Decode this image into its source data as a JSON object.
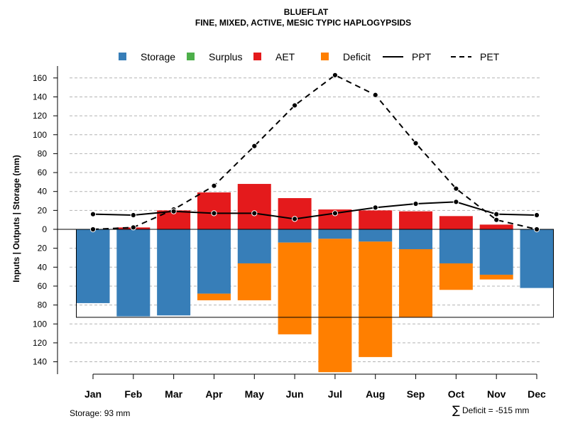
{
  "chart_data": {
    "type": "bar",
    "title": "BLUEFLAT",
    "subtitle": "FINE, MIXED, ACTIVE, MESIC TYPIC HAPLOGYPSIDS",
    "ylabel": "Inputs | Outputs | Storage    (mm)",
    "categories": [
      "Jan",
      "Feb",
      "Mar",
      "Apr",
      "May",
      "Jun",
      "Jul",
      "Aug",
      "Sep",
      "Oct",
      "Nov",
      "Dec"
    ],
    "ylim": [
      -150,
      165
    ],
    "yticks": [
      {
        "value": 160,
        "label": "160"
      },
      {
        "value": 140,
        "label": "140"
      },
      {
        "value": 120,
        "label": "120"
      },
      {
        "value": 100,
        "label": "100"
      },
      {
        "value": 80,
        "label": "80"
      },
      {
        "value": 60,
        "label": "60"
      },
      {
        "value": 40,
        "label": "40"
      },
      {
        "value": 20,
        "label": "20"
      },
      {
        "value": 0,
        "label": "0"
      },
      {
        "value": -20,
        "label": "20"
      },
      {
        "value": -40,
        "label": "40"
      },
      {
        "value": -60,
        "label": "60"
      },
      {
        "value": -80,
        "label": "80"
      },
      {
        "value": -100,
        "label": "100"
      },
      {
        "value": -120,
        "label": "120"
      },
      {
        "value": -140,
        "label": "140"
      }
    ],
    "grid": true,
    "legend": [
      {
        "name": "Storage",
        "kind": "box",
        "color": "#377eb8"
      },
      {
        "name": "Surplus",
        "kind": "box",
        "color": "#4daf4a"
      },
      {
        "name": "AET",
        "kind": "box",
        "color": "#e41a1c"
      },
      {
        "name": "Deficit",
        "kind": "box",
        "color": "#ff7f00"
      },
      {
        "name": "PPT",
        "kind": "solid-line",
        "color": "#000000"
      },
      {
        "name": "PET",
        "kind": "dashed-line",
        "color": "#000000"
      }
    ],
    "series": [
      {
        "name": "AET",
        "color": "#e41a1c",
        "values": [
          0,
          2,
          20,
          39,
          48,
          33,
          21,
          20,
          19,
          14,
          5,
          0
        ]
      },
      {
        "name": "Surplus",
        "color": "#4daf4a",
        "values": [
          0,
          0,
          0,
          0,
          0,
          0,
          0,
          0,
          0,
          0,
          0,
          0
        ]
      },
      {
        "name": "Storage",
        "color": "#377eb8",
        "values": [
          78,
          92,
          91,
          68,
          36,
          14,
          10,
          13,
          21,
          36,
          48,
          62
        ]
      },
      {
        "name": "Deficit",
        "color": "#ff7f00",
        "values": [
          0,
          0,
          0,
          7,
          39,
          97,
          141,
          122,
          72,
          28,
          5,
          0
        ]
      },
      {
        "name": "PPT",
        "color": "#000000",
        "values": [
          16,
          15,
          19,
          17,
          17,
          11,
          17,
          23,
          27,
          29,
          16,
          15
        ]
      },
      {
        "name": "PET",
        "color": "#000000",
        "values": [
          0,
          2,
          21,
          46,
          88,
          131,
          163,
          142,
          91,
          43,
          10,
          0
        ]
      }
    ],
    "storage_capacity": 93,
    "annotations": {
      "storage_note": "Storage: 93 mm",
      "deficit_symbol": "∑",
      "deficit_note": "Deficit = -515 mm"
    }
  }
}
